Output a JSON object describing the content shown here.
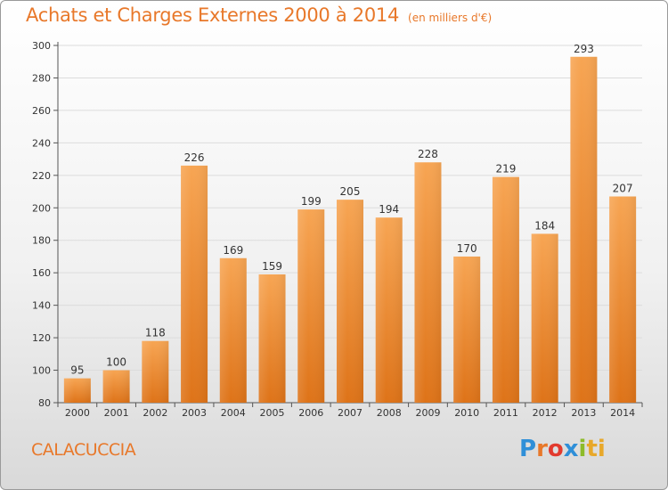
{
  "title": "Achats et Charges Externes 2000 à 2014",
  "subtitle": "(en milliers d'€)",
  "location": "CALACUCCIA",
  "brand": {
    "name": "Proxiti",
    "parts": [
      "P",
      "r",
      "o",
      "x",
      "i",
      "ti"
    ]
  },
  "colors": {
    "bar_top": "#f7a553",
    "bar_bottom": "#de7318",
    "text_accent": "#e8782a"
  },
  "chart_data": {
    "type": "bar",
    "title": "Achats et Charges Externes 2000 à 2014",
    "subtitle": "(en milliers d'€)",
    "categories": [
      "2000",
      "2001",
      "2002",
      "2003",
      "2004",
      "2005",
      "2006",
      "2007",
      "2008",
      "2009",
      "2010",
      "2011",
      "2012",
      "2013",
      "2014"
    ],
    "values": [
      95,
      100,
      118,
      226,
      169,
      159,
      199,
      205,
      194,
      228,
      170,
      219,
      184,
      293,
      207
    ],
    "ylim": [
      80,
      300
    ],
    "yticks": [
      80,
      100,
      120,
      140,
      160,
      180,
      200,
      220,
      240,
      260,
      280,
      300
    ],
    "grid": true,
    "data_labels": true
  }
}
